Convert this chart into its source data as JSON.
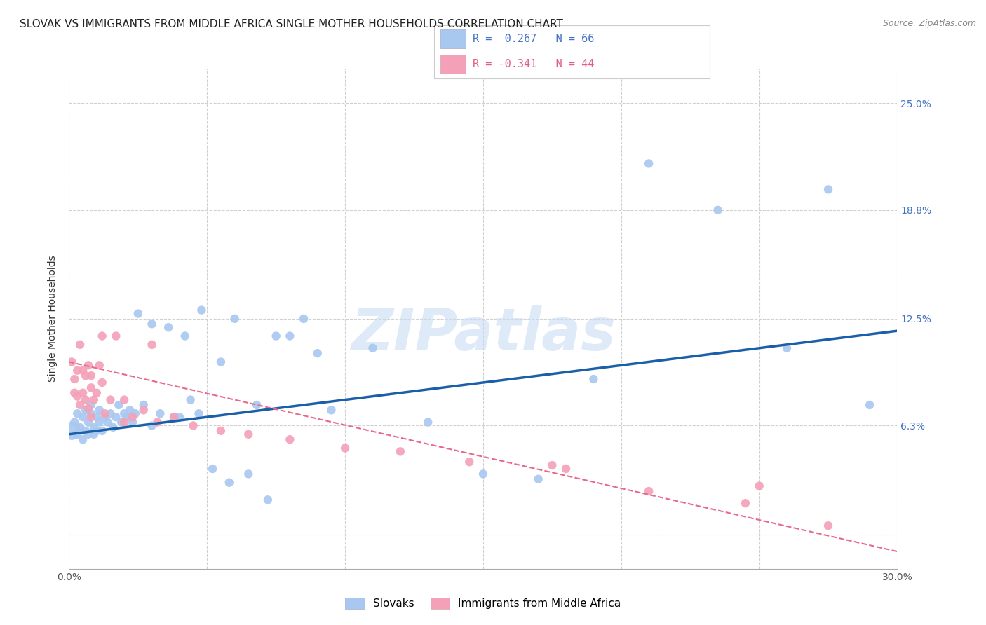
{
  "title": "SLOVAK VS IMMIGRANTS FROM MIDDLE AFRICA SINGLE MOTHER HOUSEHOLDS CORRELATION CHART",
  "source": "Source: ZipAtlas.com",
  "ylabel": "Single Mother Households",
  "xlim": [
    0.0,
    0.3
  ],
  "ylim": [
    -0.02,
    0.27
  ],
  "y_ticks": [
    0.0,
    0.063,
    0.125,
    0.188,
    0.25
  ],
  "y_tick_labels": [
    "",
    "6.3%",
    "12.5%",
    "18.8%",
    "25.0%"
  ],
  "x_ticks": [
    0.0,
    0.05,
    0.1,
    0.15,
    0.2,
    0.25,
    0.3
  ],
  "x_tick_labels": [
    "0.0%",
    "",
    "",
    "",
    "",
    "",
    "30.0%"
  ],
  "background_color": "#ffffff",
  "grid_color": "#d0d0d0",
  "scatter_color_blue": "#a8c8f0",
  "scatter_color_pink": "#f4a0b8",
  "line_color_blue": "#1a5fa8",
  "line_color_pink": "#e8688a",
  "watermark": "ZIPatlas",
  "legend_label_blue": "Slovaks",
  "legend_label_pink": "Immigrants from Middle Africa",
  "legend_R1_text": "R =  0.267   N = 66",
  "legend_R2_text": "R = -0.341   N = 44",
  "legend_color_blue": "#4472c4",
  "legend_color_pink": "#e06080",
  "blue_x": [
    0.001,
    0.002,
    0.003,
    0.003,
    0.004,
    0.005,
    0.005,
    0.006,
    0.006,
    0.007,
    0.007,
    0.008,
    0.008,
    0.009,
    0.009,
    0.01,
    0.01,
    0.011,
    0.011,
    0.012,
    0.013,
    0.014,
    0.015,
    0.016,
    0.017,
    0.018,
    0.019,
    0.02,
    0.021,
    0.022,
    0.023,
    0.024,
    0.025,
    0.027,
    0.03,
    0.033,
    0.036,
    0.04,
    0.044,
    0.048,
    0.055,
    0.06,
    0.068,
    0.075,
    0.085,
    0.095,
    0.11,
    0.13,
    0.15,
    0.17,
    0.19,
    0.21,
    0.235,
    0.26,
    0.275,
    0.29,
    0.03,
    0.038,
    0.042,
    0.047,
    0.052,
    0.058,
    0.065,
    0.072,
    0.08,
    0.09
  ],
  "blue_y": [
    0.06,
    0.065,
    0.058,
    0.07,
    0.062,
    0.068,
    0.055,
    0.072,
    0.06,
    0.065,
    0.058,
    0.07,
    0.075,
    0.062,
    0.058,
    0.068,
    0.06,
    0.072,
    0.065,
    0.06,
    0.068,
    0.065,
    0.07,
    0.062,
    0.068,
    0.075,
    0.065,
    0.07,
    0.068,
    0.072,
    0.065,
    0.07,
    0.128,
    0.075,
    0.063,
    0.07,
    0.12,
    0.068,
    0.078,
    0.13,
    0.1,
    0.125,
    0.075,
    0.115,
    0.125,
    0.072,
    0.108,
    0.065,
    0.035,
    0.032,
    0.09,
    0.215,
    0.188,
    0.108,
    0.2,
    0.075,
    0.122,
    0.068,
    0.115,
    0.07,
    0.038,
    0.03,
    0.035,
    0.02,
    0.115,
    0.105
  ],
  "blue_sizes": [
    350,
    80,
    80,
    80,
    80,
    80,
    80,
    80,
    80,
    80,
    80,
    80,
    80,
    80,
    80,
    80,
    80,
    80,
    80,
    80,
    80,
    80,
    80,
    80,
    80,
    80,
    80,
    80,
    80,
    80,
    80,
    80,
    80,
    80,
    80,
    80,
    80,
    80,
    80,
    80,
    80,
    80,
    80,
    80,
    80,
    80,
    80,
    80,
    80,
    80,
    80,
    80,
    80,
    80,
    80,
    80,
    80,
    80,
    80,
    80,
    80,
    80,
    80,
    80,
    80,
    80
  ],
  "pink_x": [
    0.001,
    0.002,
    0.002,
    0.003,
    0.003,
    0.004,
    0.004,
    0.005,
    0.005,
    0.006,
    0.006,
    0.007,
    0.007,
    0.008,
    0.008,
    0.009,
    0.01,
    0.011,
    0.012,
    0.013,
    0.015,
    0.017,
    0.02,
    0.023,
    0.027,
    0.032,
    0.038,
    0.045,
    0.055,
    0.065,
    0.08,
    0.1,
    0.12,
    0.145,
    0.175,
    0.21,
    0.245,
    0.275,
    0.03,
    0.02,
    0.012,
    0.008,
    0.25,
    0.18
  ],
  "pink_y": [
    0.1,
    0.09,
    0.082,
    0.095,
    0.08,
    0.11,
    0.075,
    0.095,
    0.082,
    0.092,
    0.078,
    0.098,
    0.073,
    0.085,
    0.092,
    0.078,
    0.082,
    0.098,
    0.088,
    0.07,
    0.078,
    0.115,
    0.078,
    0.068,
    0.072,
    0.065,
    0.068,
    0.063,
    0.06,
    0.058,
    0.055,
    0.05,
    0.048,
    0.042,
    0.04,
    0.025,
    0.018,
    0.005,
    0.11,
    0.065,
    0.115,
    0.068,
    0.028,
    0.038
  ],
  "pink_sizes": [
    80,
    80,
    80,
    80,
    80,
    80,
    80,
    80,
    80,
    80,
    80,
    80,
    80,
    80,
    80,
    80,
    80,
    80,
    80,
    80,
    80,
    80,
    80,
    80,
    80,
    80,
    80,
    80,
    80,
    80,
    80,
    80,
    80,
    80,
    80,
    80,
    80,
    80,
    80,
    80,
    80,
    80,
    80,
    80
  ],
  "blue_line_x": [
    0.0,
    0.3
  ],
  "blue_line_y": [
    0.058,
    0.118
  ],
  "pink_line_x": [
    0.0,
    0.3
  ],
  "pink_line_y": [
    0.1,
    -0.01
  ],
  "title_fontsize": 11,
  "axis_label_fontsize": 10,
  "tick_fontsize": 10,
  "source_fontsize": 9
}
